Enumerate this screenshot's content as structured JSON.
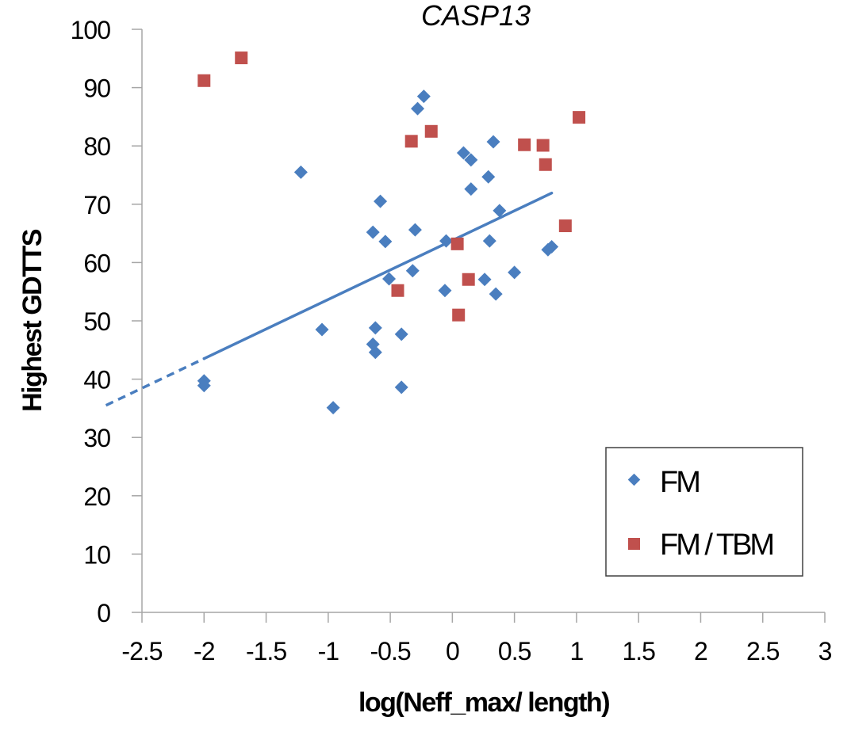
{
  "chart_data": {
    "type": "scatter",
    "title": "CASP13",
    "xlabel": "log(Neff_max/ length)",
    "ylabel": "Highest GDTTS",
    "xlim": [
      -2.5,
      3
    ],
    "ylim": [
      0,
      100
    ],
    "xticks": [
      -2.5,
      -2,
      -1.5,
      -1,
      -0.5,
      0,
      0.5,
      1,
      1.5,
      2,
      2.5,
      3
    ],
    "xtick_labels": [
      "-2.5",
      "-2",
      "-1.5",
      "-1",
      "-0.5",
      "0",
      "0.5",
      "1",
      "1.5",
      "2",
      "2.5",
      "3"
    ],
    "yticks": [
      0,
      10,
      20,
      30,
      40,
      50,
      60,
      70,
      80,
      90,
      100
    ],
    "ytick_labels": [
      "0",
      "10",
      "20",
      "30",
      "40",
      "50",
      "60",
      "70",
      "80",
      "90",
      "100"
    ],
    "grid": false,
    "legend_position": "bottom-right",
    "series": [
      {
        "name": "FM",
        "marker": "diamond",
        "color": "#4a7ebf",
        "points": [
          [
            -2.0,
            39.7
          ],
          [
            -2.0,
            38.9
          ],
          [
            -1.22,
            75.5
          ],
          [
            -1.05,
            48.5
          ],
          [
            -0.96,
            35.1
          ],
          [
            -0.64,
            65.2
          ],
          [
            -0.62,
            48.8
          ],
          [
            -0.64,
            46.0
          ],
          [
            -0.62,
            44.6
          ],
          [
            -0.58,
            70.5
          ],
          [
            -0.54,
            63.6
          ],
          [
            -0.51,
            57.2
          ],
          [
            -0.41,
            47.7
          ],
          [
            -0.41,
            38.6
          ],
          [
            -0.32,
            58.6
          ],
          [
            -0.3,
            65.6
          ],
          [
            -0.28,
            86.4
          ],
          [
            -0.23,
            88.5
          ],
          [
            -0.06,
            55.2
          ],
          [
            -0.05,
            63.7
          ],
          [
            0.09,
            78.8
          ],
          [
            0.15,
            77.6
          ],
          [
            0.15,
            72.6
          ],
          [
            0.26,
            57.1
          ],
          [
            0.29,
            74.7
          ],
          [
            0.3,
            63.7
          ],
          [
            0.33,
            80.7
          ],
          [
            0.35,
            54.6
          ],
          [
            0.38,
            68.9
          ],
          [
            0.5,
            58.3
          ],
          [
            0.77,
            62.2
          ],
          [
            0.8,
            62.7
          ]
        ]
      },
      {
        "name": "FM / TBM",
        "marker": "square",
        "color": "#c0504d",
        "points": [
          [
            -2.0,
            91.2
          ],
          [
            -1.7,
            95.1
          ],
          [
            -0.44,
            55.2
          ],
          [
            -0.33,
            80.8
          ],
          [
            -0.17,
            82.5
          ],
          [
            0.04,
            63.2
          ],
          [
            0.05,
            51.0
          ],
          [
            0.13,
            57.1
          ],
          [
            0.58,
            80.2
          ],
          [
            0.73,
            80.1
          ],
          [
            0.75,
            76.8
          ],
          [
            0.91,
            66.3
          ],
          [
            1.02,
            84.9
          ]
        ]
      }
    ],
    "trendline": {
      "color": "#4a7ebf",
      "slope": 10.14,
      "intercept": 63.8,
      "solid_range": [
        -2.0,
        0.8
      ],
      "dashed_range": [
        -2.79,
        -2.0
      ]
    }
  }
}
